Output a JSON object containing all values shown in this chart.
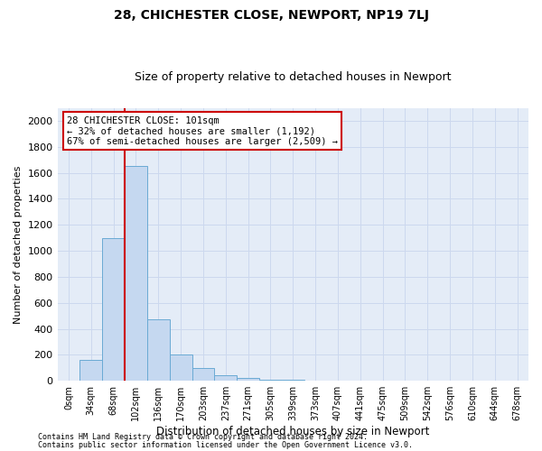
{
  "title": "28, CHICHESTER CLOSE, NEWPORT, NP19 7LJ",
  "subtitle": "Size of property relative to detached houses in Newport",
  "xlabel": "Distribution of detached houses by size in Newport",
  "ylabel": "Number of detached properties",
  "bar_color": "#c5d8f0",
  "bar_edge_color": "#6aaad4",
  "categories": [
    "0sqm",
    "34sqm",
    "68sqm",
    "102sqm",
    "136sqm",
    "170sqm",
    "203sqm",
    "237sqm",
    "271sqm",
    "305sqm",
    "339sqm",
    "373sqm",
    "407sqm",
    "441sqm",
    "475sqm",
    "509sqm",
    "542sqm",
    "576sqm",
    "610sqm",
    "644sqm",
    "678sqm"
  ],
  "values": [
    0,
    160,
    1100,
    1650,
    470,
    200,
    100,
    40,
    25,
    10,
    5,
    3,
    2,
    1,
    1,
    0,
    0,
    0,
    0,
    0,
    0
  ],
  "ylim": [
    0,
    2100
  ],
  "yticks": [
    0,
    200,
    400,
    600,
    800,
    1000,
    1200,
    1400,
    1600,
    1800,
    2000
  ],
  "redline_bar_index": 3,
  "annotation_line1": "28 CHICHESTER CLOSE: 101sqm",
  "annotation_line2": "← 32% of detached houses are smaller (1,192)",
  "annotation_line3": "67% of semi-detached houses are larger (2,509) →",
  "annotation_box_color": "#ffffff",
  "annotation_box_edgecolor": "#cc0000",
  "footer1": "Contains HM Land Registry data © Crown copyright and database right 2024.",
  "footer2": "Contains public sector information licensed under the Open Government Licence v3.0.",
  "grid_color": "#ccd8ee",
  "background_color": "#e4ecf7"
}
